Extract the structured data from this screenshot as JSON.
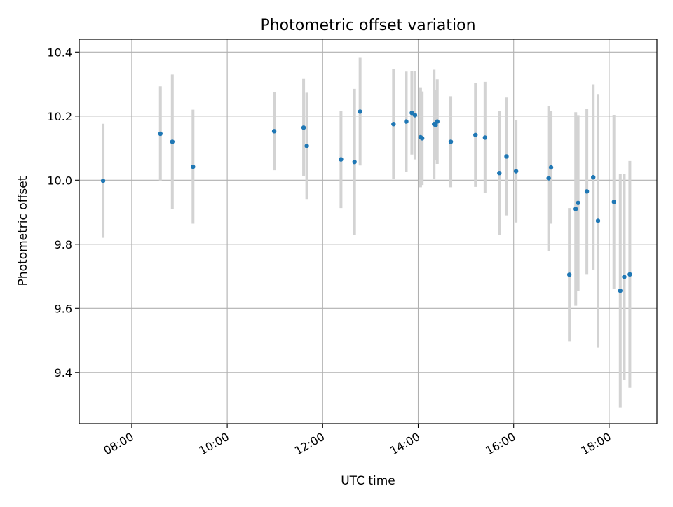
{
  "chart_data": {
    "type": "scatter",
    "title": "Photometric offset variation",
    "xlabel": "UTC time",
    "ylabel": "Photometric offset",
    "x_ticks": [
      "08:00",
      "10:00",
      "12:00",
      "14:00",
      "16:00",
      "18:00"
    ],
    "x_tick_values": [
      "08:00",
      "10:00",
      "12:00",
      "14:00",
      "16:00",
      "18:00"
    ],
    "y_ticks": [
      "9.4",
      "9.6",
      "9.8",
      "10.0",
      "10.2",
      "10.4"
    ],
    "y_tick_values": [
      9.4,
      9.6,
      9.8,
      10.0,
      10.2,
      10.4
    ],
    "xlim": [
      "06:54",
      "19:00"
    ],
    "ylim": [
      9.24,
      10.44
    ],
    "grid": true,
    "colors": {
      "marker": "#1f77b4",
      "errorbar": "#d3d3d3",
      "grid": "#b0b0b0"
    },
    "points": [
      {
        "x": "07:24",
        "y": 9.998,
        "yerr": 0.178
      },
      {
        "x": "08:36",
        "y": 10.145,
        "yerr": 0.148
      },
      {
        "x": "08:51",
        "y": 10.12,
        "yerr": 0.21
      },
      {
        "x": "09:17",
        "y": 10.042,
        "yerr": 0.178
      },
      {
        "x": "10:59",
        "y": 10.153,
        "yerr": 0.122
      },
      {
        "x": "11:36",
        "y": 10.164,
        "yerr": 0.152
      },
      {
        "x": "11:40",
        "y": 10.107,
        "yerr": 0.166
      },
      {
        "x": "12:23",
        "y": 10.065,
        "yerr": 0.152
      },
      {
        "x": "12:40",
        "y": 10.057,
        "yerr": 0.228
      },
      {
        "x": "12:47",
        "y": 10.214,
        "yerr": 0.168
      },
      {
        "x": "13:29",
        "y": 10.175,
        "yerr": 0.172
      },
      {
        "x": "13:45",
        "y": 10.183,
        "yerr": 0.156
      },
      {
        "x": "13:52",
        "y": 10.21,
        "yerr": 0.13
      },
      {
        "x": "13:56",
        "y": 10.203,
        "yerr": 0.138
      },
      {
        "x": "14:03",
        "y": 10.134,
        "yerr": 0.156
      },
      {
        "x": "14:05",
        "y": 10.131,
        "yerr": 0.146
      },
      {
        "x": "14:20",
        "y": 10.175,
        "yerr": 0.17
      },
      {
        "x": "14:22",
        "y": 10.172,
        "yerr": 0.11
      },
      {
        "x": "14:24",
        "y": 10.183,
        "yerr": 0.132
      },
      {
        "x": "14:41",
        "y": 10.12,
        "yerr": 0.142
      },
      {
        "x": "15:12",
        "y": 10.141,
        "yerr": 0.162
      },
      {
        "x": "15:24",
        "y": 10.133,
        "yerr": 0.174
      },
      {
        "x": "15:42",
        "y": 10.022,
        "yerr": 0.194
      },
      {
        "x": "15:51",
        "y": 10.074,
        "yerr": 0.184
      },
      {
        "x": "16:03",
        "y": 10.028,
        "yerr": 0.16
      },
      {
        "x": "16:44",
        "y": 10.006,
        "yerr": 0.226
      },
      {
        "x": "16:47",
        "y": 10.04,
        "yerr": 0.176
      },
      {
        "x": "17:10",
        "y": 9.705,
        "yerr": 0.208
      },
      {
        "x": "17:18",
        "y": 9.91,
        "yerr": 0.302
      },
      {
        "x": "17:21",
        "y": 9.929,
        "yerr": 0.274
      },
      {
        "x": "17:32",
        "y": 9.965,
        "yerr": 0.258
      },
      {
        "x": "17:40",
        "y": 10.009,
        "yerr": 0.29
      },
      {
        "x": "17:46",
        "y": 9.873,
        "yerr": 0.396
      },
      {
        "x": "18:06",
        "y": 9.932,
        "yerr": 0.272
      },
      {
        "x": "18:14",
        "y": 9.655,
        "yerr": 0.364
      },
      {
        "x": "18:19",
        "y": 9.698,
        "yerr": 0.322
      },
      {
        "x": "18:26",
        "y": 9.706,
        "yerr": 0.354
      }
    ]
  }
}
